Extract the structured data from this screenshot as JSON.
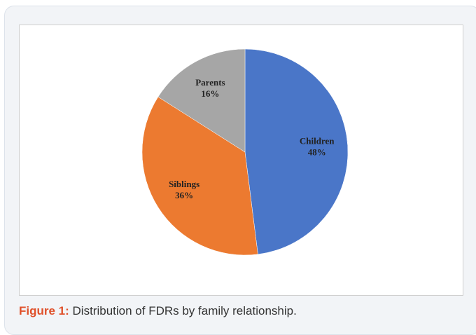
{
  "chart_data": {
    "type": "pie",
    "categories": [
      "Children",
      "Siblings",
      "Parents"
    ],
    "values": [
      48,
      36,
      16
    ],
    "value_labels": [
      "48%",
      "36%",
      "16%"
    ],
    "colors": [
      "#4a76c8",
      "#ec7a30",
      "#a6a6a6"
    ]
  },
  "figure": {
    "label": "Figure 1:",
    "caption": "Distribution of FDRs by family relationship."
  }
}
